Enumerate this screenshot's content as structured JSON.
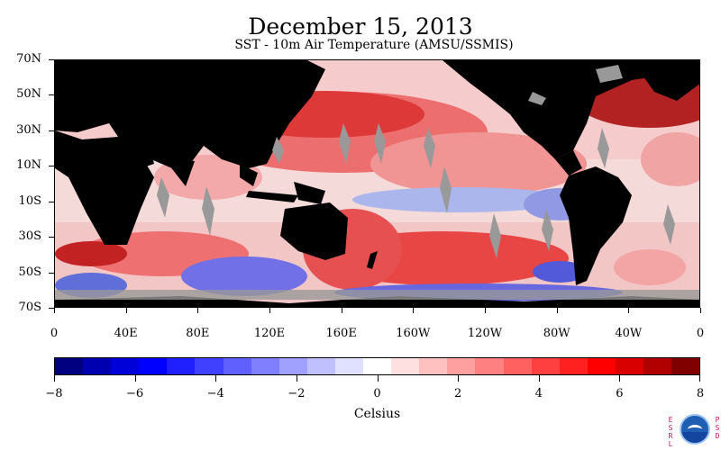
{
  "title": "December 15, 2013",
  "subtitle": "SST - 10m Air Temperature (AMSU/SSMIS)",
  "map": {
    "lon_range": [
      0,
      360
    ],
    "lat_range": [
      -70,
      70
    ],
    "land_color": "#000000",
    "missing_color": "#999999"
  },
  "lat_axis": [
    {
      "label": "70N",
      "lat": 70
    },
    {
      "label": "50N",
      "lat": 50
    },
    {
      "label": "30N",
      "lat": 30
    },
    {
      "label": "10N",
      "lat": 10
    },
    {
      "label": "10S",
      "lat": -10
    },
    {
      "label": "30S",
      "lat": -30
    },
    {
      "label": "50S",
      "lat": -50
    },
    {
      "label": "70S",
      "lat": -70
    }
  ],
  "lon_axis": [
    {
      "label": "0",
      "lon": 0
    },
    {
      "label": "40E",
      "lon": 40
    },
    {
      "label": "80E",
      "lon": 80
    },
    {
      "label": "120E",
      "lon": 120
    },
    {
      "label": "160E",
      "lon": 160
    },
    {
      "label": "160W",
      "lon": 200
    },
    {
      "label": "120W",
      "lon": 240
    },
    {
      "label": "80W",
      "lon": 280
    },
    {
      "label": "40W",
      "lon": 320
    },
    {
      "label": "0",
      "lon": 360
    }
  ],
  "colorbar": {
    "min": -8,
    "max": 8,
    "units": "Celsius",
    "ticks": [
      "−8",
      "−6",
      "−4",
      "−2",
      "0",
      "2",
      "4",
      "6",
      "8"
    ],
    "colors": [
      "#000080",
      "#0000b0",
      "#0000d8",
      "#0000ff",
      "#2020ff",
      "#4040ff",
      "#6060ff",
      "#8080ff",
      "#a0a0ff",
      "#c0c0ff",
      "#e0e0ff",
      "#ffffff",
      "#ffe0e0",
      "#ffc0c0",
      "#ffa0a0",
      "#ff8080",
      "#ff6060",
      "#ff4040",
      "#ff2020",
      "#ff0000",
      "#d80000",
      "#b00000",
      "#800000"
    ]
  },
  "logo": {
    "left_text": "ESRL",
    "right_text": "PSD",
    "icon": "noaa-logo-icon"
  }
}
